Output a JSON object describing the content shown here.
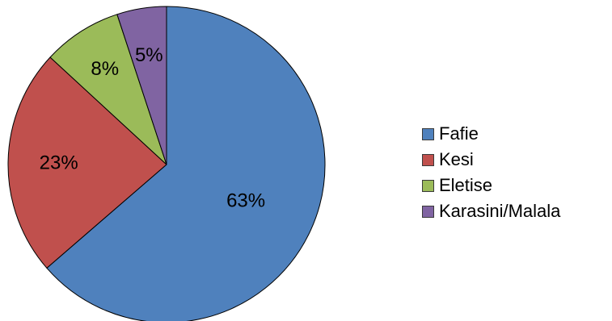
{
  "chart_data": {
    "type": "pie",
    "categories": [
      "Fafie",
      "Kesi",
      "Eletise",
      "Karasini/Malala"
    ],
    "values": [
      63,
      23,
      8,
      5
    ],
    "labels": [
      "63%",
      "23%",
      "8%",
      "5%"
    ],
    "colors": [
      "#4F81BD",
      "#C0504D",
      "#9BBB59",
      "#8064A2"
    ],
    "title": "",
    "legend": "right",
    "start_angle": "12 o'clock",
    "direction": "clockwise"
  }
}
